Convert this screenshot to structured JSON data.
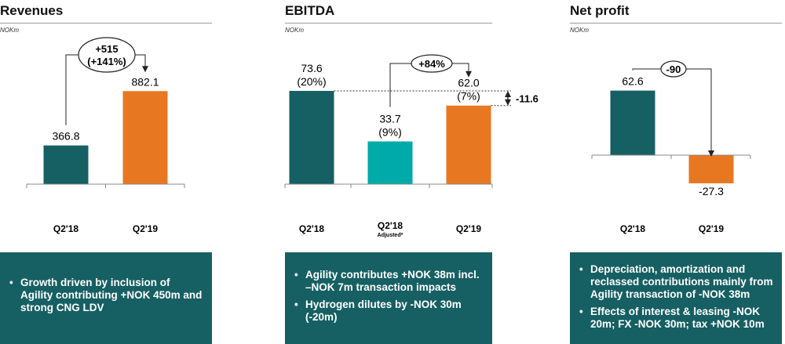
{
  "colors": {
    "teal_dark": "#165f62",
    "teal_light": "#00aaa8",
    "orange": "#e87722",
    "box_bg": "#165f62"
  },
  "panels": [
    {
      "title": "Revenues",
      "unit": "NOKm",
      "bullets": [
        "Growth driven by inclusion of Agility contributing +NOK 450m and strong CNG LDV"
      ]
    },
    {
      "title": "EBITDA",
      "unit": "NOKm",
      "bullets": [
        "Agility contributes +NOK 38m incl. –NOK 7m transaction impacts",
        "Hydrogen dilutes by -NOK 30m (-20m)"
      ]
    },
    {
      "title": "Net profit",
      "unit": "NOKm",
      "bullets": [
        "Depreciation, amortization and reclassed contributions mainly from Agility transaction of -NOK 38m",
        "Effects of interest & leasing -NOK 20m; FX -NOK 30m; tax +NOK 10m"
      ]
    }
  ],
  "chart_data": [
    {
      "type": "bar",
      "title": "Revenues",
      "unit": "NOKm",
      "categories": [
        "Q2'18",
        "Q2'19"
      ],
      "values": [
        366.8,
        882.1
      ],
      "value_labels": [
        "366.8",
        "882.1"
      ],
      "bar_colors": [
        "#165f62",
        "#e87722"
      ],
      "annotation": {
        "line1": "+515",
        "line2": "(+141%)"
      }
    },
    {
      "type": "bar",
      "title": "EBITDA",
      "unit": "NOKm",
      "categories": [
        "Q2'18",
        "Q2'18",
        "Q2'19"
      ],
      "category_notes": [
        "",
        "Adjusted*",
        ""
      ],
      "values": [
        73.6,
        33.7,
        62.0
      ],
      "value_labels": [
        "73.6",
        "33.7",
        "62.0"
      ],
      "margin_labels": [
        "(20%)",
        "(9%)",
        "(7%)"
      ],
      "bar_colors": [
        "#165f62",
        "#00aaa8",
        "#e87722"
      ],
      "annotation": "+84%",
      "difference_label": "-11.6"
    },
    {
      "type": "bar",
      "title": "Net profit",
      "unit": "NOKm",
      "categories": [
        "Q2'18",
        "Q2'19"
      ],
      "values": [
        62.6,
        -27.3
      ],
      "value_labels": [
        "62.6",
        "-27.3"
      ],
      "bar_colors": [
        "#165f62",
        "#e87722"
      ],
      "annotation": "-90"
    }
  ]
}
